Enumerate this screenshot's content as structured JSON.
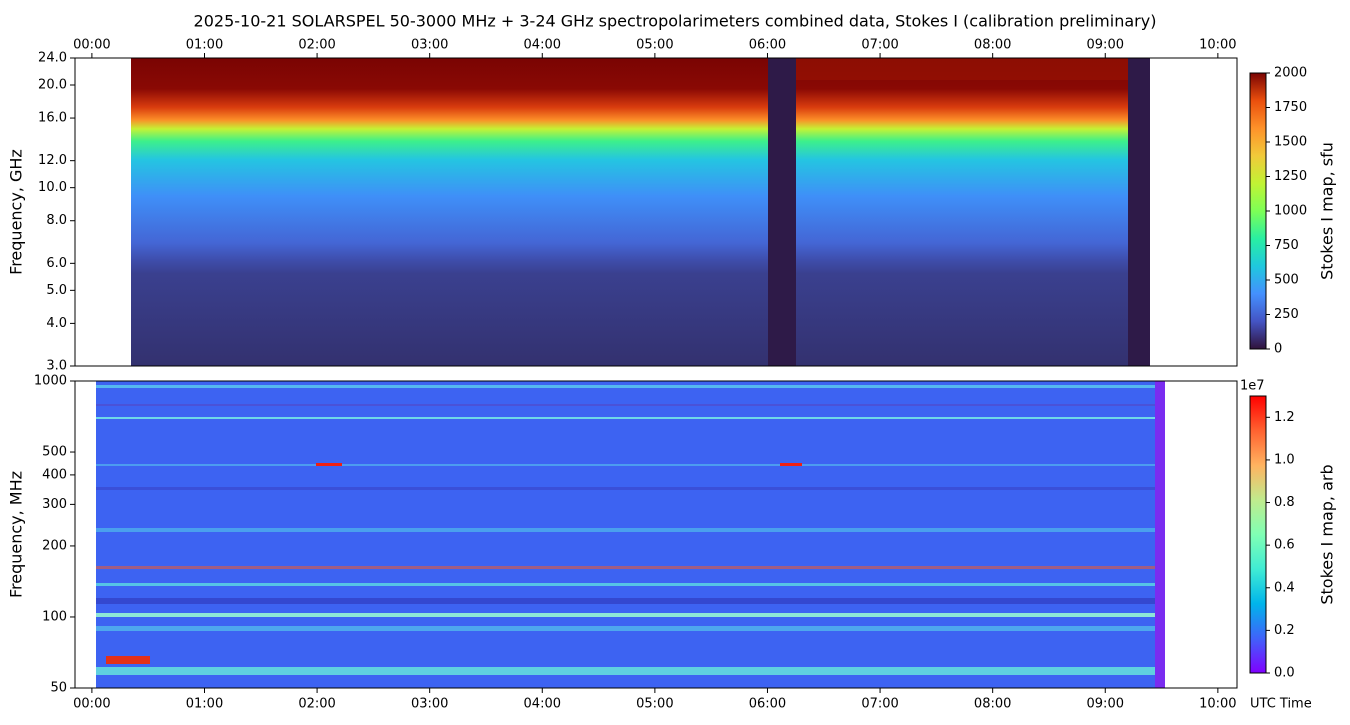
{
  "chart_data": [
    {
      "type": "heatmap",
      "title": "2025-10-21  SOLARSPEL  50-3000 MHz  +  3-24 GHz  spectropolarimeters combined data,  Stokes I  (calibration preliminary)",
      "ylabel": "Frequency, GHz",
      "log_y": true,
      "xaxis_position": "top",
      "xlim": [
        -0.15,
        10.17
      ],
      "xticks": [
        {
          "value": 0,
          "label": "00:00"
        },
        {
          "value": 1,
          "label": "01:00"
        },
        {
          "value": 2,
          "label": "02:00"
        },
        {
          "value": 3,
          "label": "03:00"
        },
        {
          "value": 4,
          "label": "04:00"
        },
        {
          "value": 5,
          "label": "05:00"
        },
        {
          "value": 6,
          "label": "06:00"
        },
        {
          "value": 7,
          "label": "07:00"
        },
        {
          "value": 8,
          "label": "08:00"
        },
        {
          "value": 9,
          "label": "09:00"
        },
        {
          "value": 10,
          "label": "10:00"
        }
      ],
      "ylim": [
        3,
        24
      ],
      "yticks": [
        {
          "value": 3,
          "label": "3.0"
        },
        {
          "value": 4,
          "label": "4.0"
        },
        {
          "value": 5,
          "label": "5.0"
        },
        {
          "value": 6,
          "label": "6.0"
        },
        {
          "value": 8,
          "label": "8.0"
        },
        {
          "value": 10,
          "label": "10.0"
        },
        {
          "value": 12,
          "label": "12.0"
        },
        {
          "value": 16,
          "label": "16.0"
        },
        {
          "value": 20,
          "label": "20.0"
        },
        {
          "value": 24,
          "label": "24.0"
        }
      ],
      "colorbar": {
        "label": "Stokes I map, sfu",
        "colormap": "turbo",
        "lim": [
          0,
          2000
        ],
        "ticks": [
          0,
          250,
          500,
          750,
          1000,
          1250,
          1500,
          1750,
          2000
        ]
      }
    },
    {
      "type": "heatmap",
      "ylabel": "Frequency, MHz",
      "xlabel": "UTC Time",
      "log_y": true,
      "xaxis_position": "bottom",
      "xlim": [
        -0.15,
        10.17
      ],
      "xticks": [
        {
          "value": 0,
          "label": "00:00"
        },
        {
          "value": 1,
          "label": "01:00"
        },
        {
          "value": 2,
          "label": "02:00"
        },
        {
          "value": 3,
          "label": "03:00"
        },
        {
          "value": 4,
          "label": "04:00"
        },
        {
          "value": 5,
          "label": "05:00"
        },
        {
          "value": 6,
          "label": "06:00"
        },
        {
          "value": 7,
          "label": "07:00"
        },
        {
          "value": 8,
          "label": "08:00"
        },
        {
          "value": 9,
          "label": "09:00"
        },
        {
          "value": 10,
          "label": "10:00"
        }
      ],
      "ylim": [
        50,
        1000
      ],
      "yticks": [
        50,
        100,
        200,
        300,
        400,
        500,
        1000
      ],
      "colorbar": {
        "label": "Stokes I map, arb",
        "colormap": "rainbow",
        "offset_label": "1e7",
        "lim": [
          0,
          13000000
        ],
        "ticks": [
          {
            "value": 0,
            "label": "0.0"
          },
          {
            "value": 2000000,
            "label": "0.2"
          },
          {
            "value": 4000000,
            "label": "0.4"
          },
          {
            "value": 6000000,
            "label": "0.6"
          },
          {
            "value": 8000000,
            "label": "0.8"
          },
          {
            "value": 10000000,
            "label": "1.0"
          },
          {
            "value": 12000000,
            "label": "1.2"
          }
        ]
      }
    }
  ]
}
